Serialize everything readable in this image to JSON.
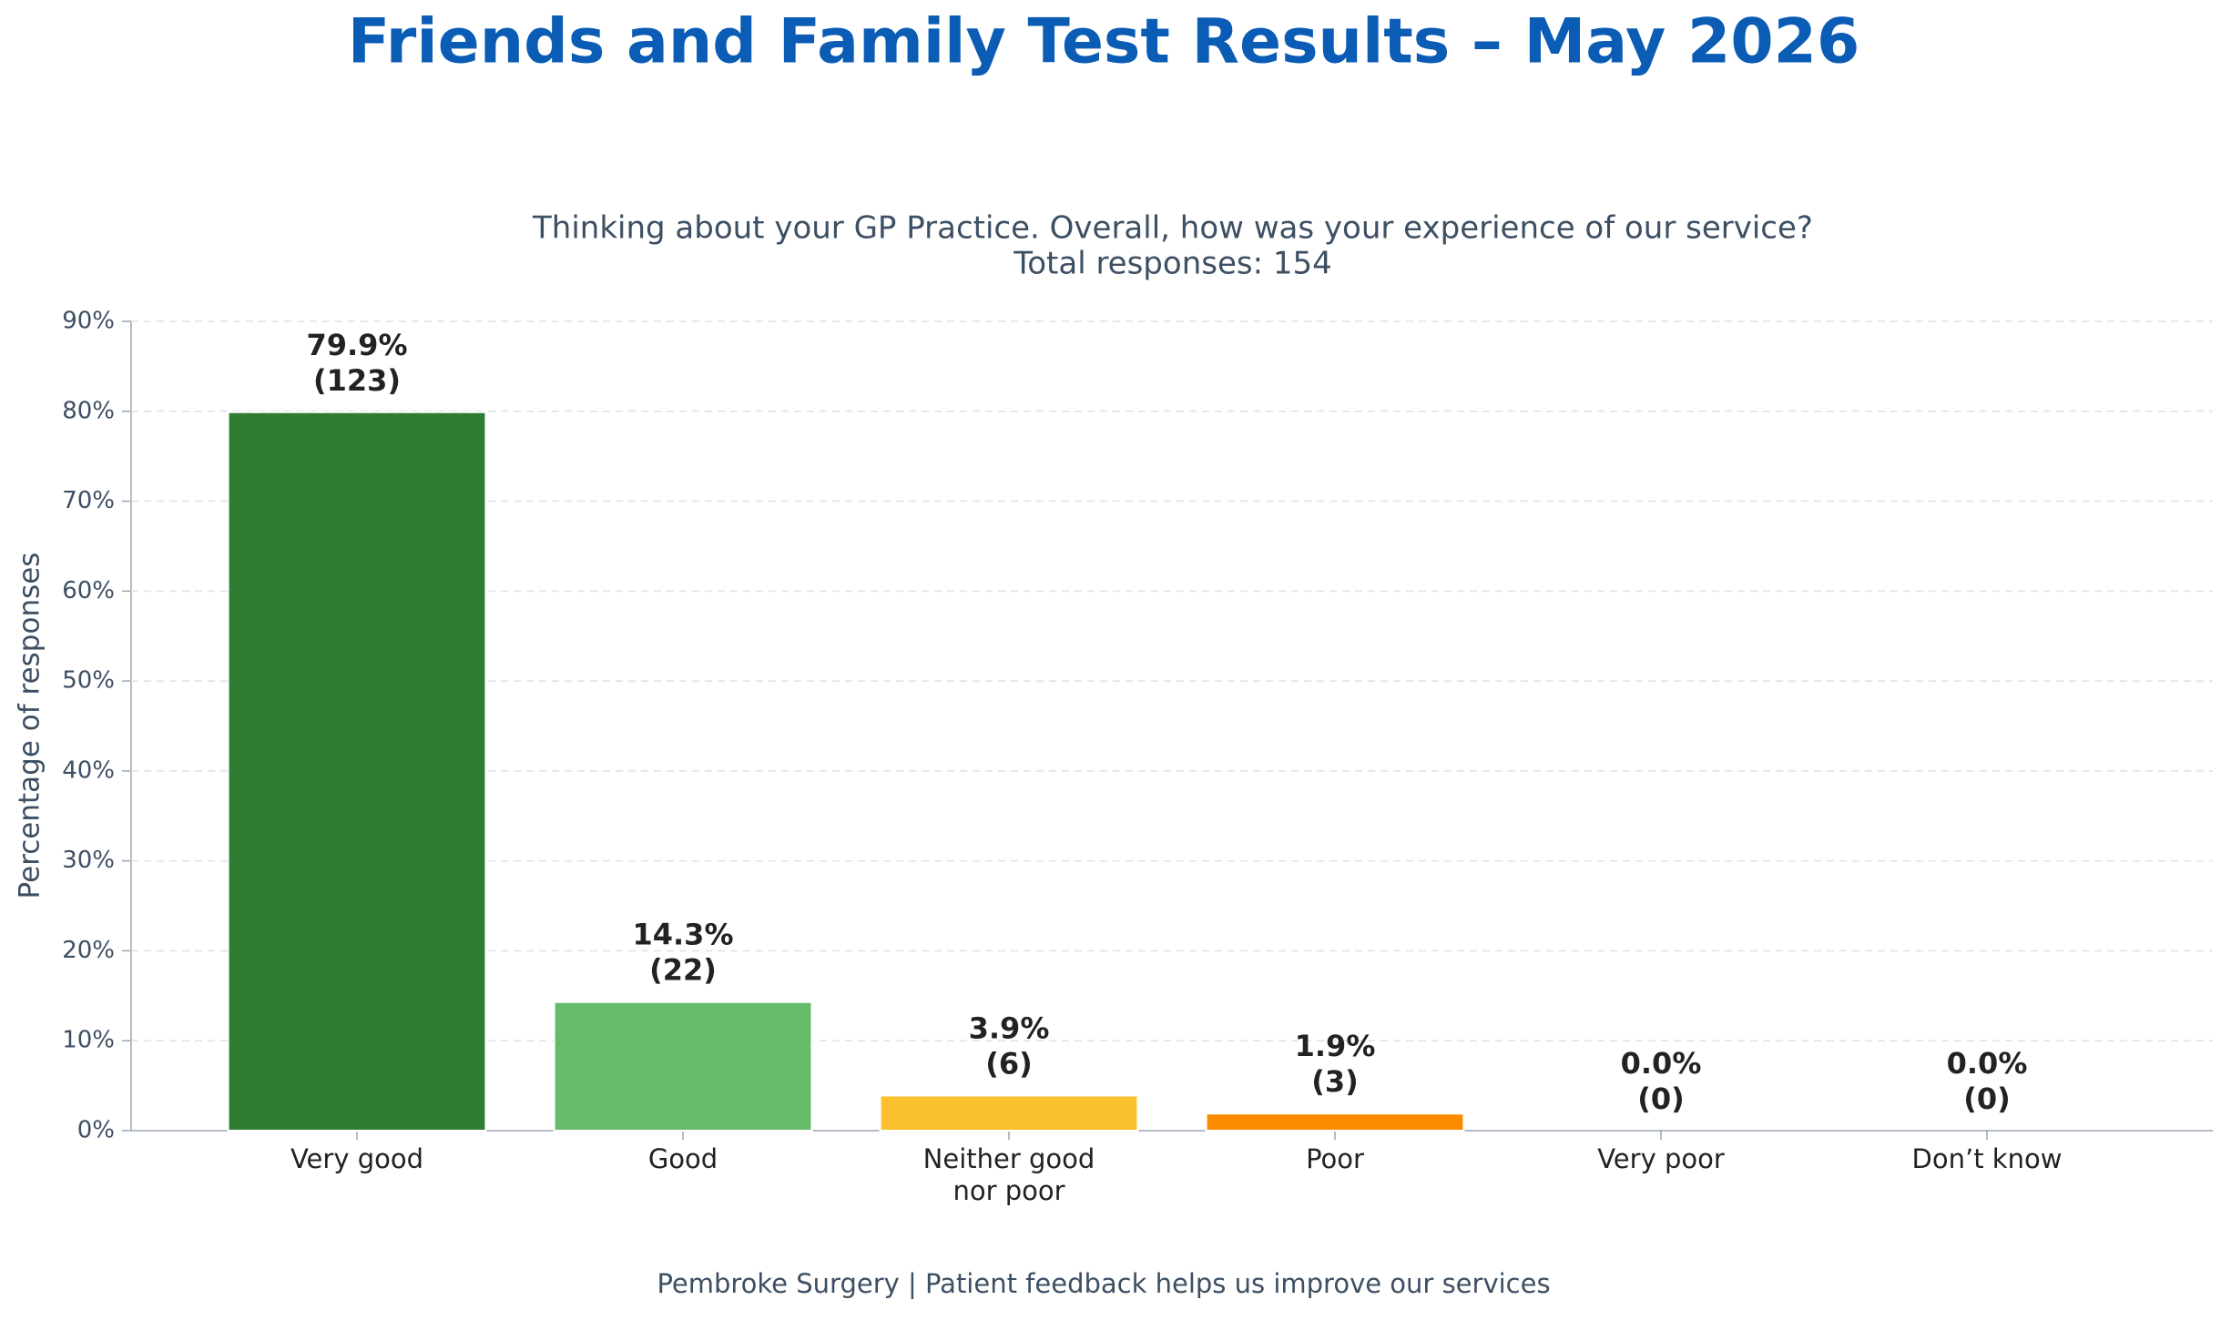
{
  "chart_data": {
    "type": "bar",
    "title": "Friends and Family Test Results – May 2026",
    "subtitle": "Thinking about your GP Practice. Overall, how was your experience of our service?",
    "subtitle_2": "Total responses: 154",
    "y_label": "Percentage of responses",
    "footer": "Pembroke Surgery | Patient feedback helps us improve our services",
    "categories": [
      "Very good",
      "Good",
      "Neither good\nnor poor",
      "Poor",
      "Very poor",
      "Don’t know"
    ],
    "values": [
      79.9,
      14.3,
      3.9,
      1.9,
      0,
      0
    ],
    "value_labels": [
      "79.9%",
      "14.3%",
      "3.9%",
      "1.9%",
      "0.0%",
      "0.0%"
    ],
    "count_labels": [
      "(123)",
      "(22)",
      "(6)",
      "(3)",
      "(0)",
      "(0)"
    ],
    "colors": [
      "#2e7d32",
      "#66bb6a",
      "#fbc02d",
      "#fb8c00",
      "#e53935",
      "#9e9e9e"
    ],
    "ylim": [
      0,
      90
    ],
    "yticks": [
      {
        "value": 0,
        "label": "0%"
      },
      {
        "value": 10,
        "label": "10%"
      },
      {
        "value": 20,
        "label": "20%"
      },
      {
        "value": 30,
        "label": "30%"
      },
      {
        "value": 40,
        "label": "40%"
      },
      {
        "value": 50,
        "label": "50%"
      },
      {
        "value": 60,
        "label": "60%"
      },
      {
        "value": 70,
        "label": "70%"
      },
      {
        "value": 80,
        "label": "80%"
      },
      {
        "value": 90,
        "label": "90%"
      }
    ],
    "grid": true
  }
}
